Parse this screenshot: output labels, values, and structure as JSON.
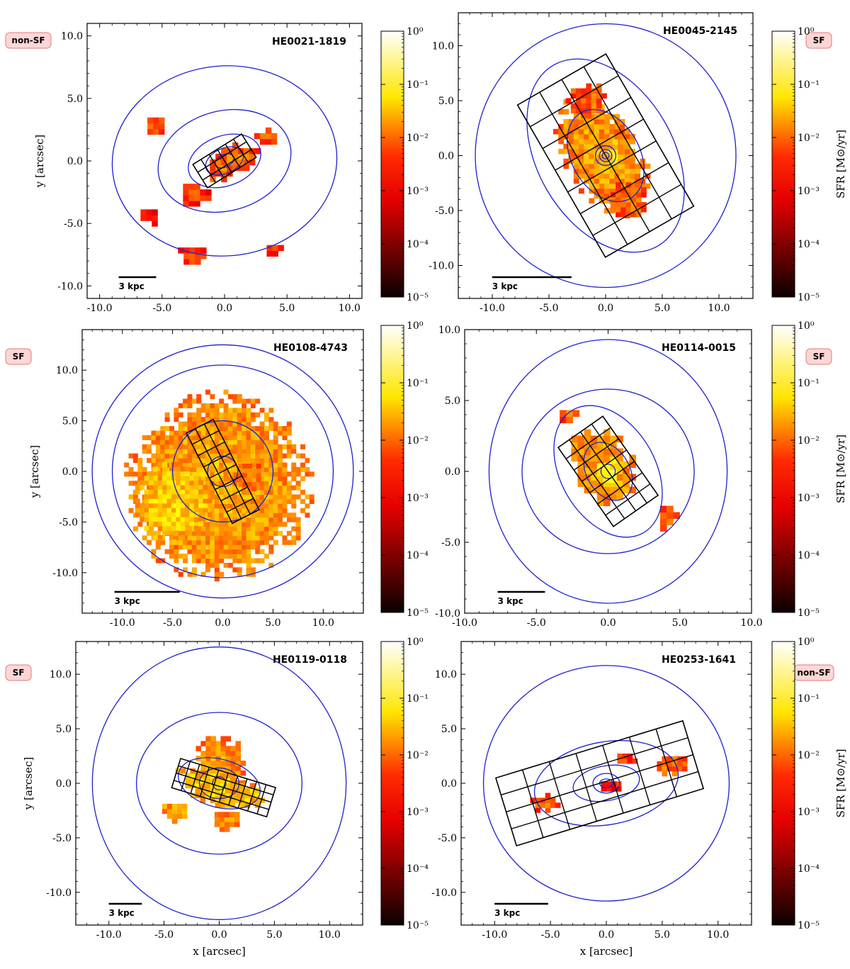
{
  "figure": {
    "type": "map",
    "colorbar": {
      "label": "SFR [M⊙/yr]",
      "ticks": [
        "10⁻⁵",
        "10⁻⁴",
        "10⁻³",
        "10⁻²",
        "10⁻¹",
        "10⁰"
      ],
      "colormap": "hot"
    },
    "contour_color": "#1f1fd0",
    "grid_color": "#000000"
  },
  "chart_data": [
    {
      "id": "HE0021-1819",
      "type": "heatmap",
      "title": "HE0021-1819",
      "badge": "non-SF",
      "xlabel": "",
      "ylabel": "y [arcsec]",
      "xlim": [
        -11,
        11
      ],
      "ylim": [
        -11,
        11
      ],
      "xticks": [
        "-10.0",
        "-5.0",
        "0.0",
        "5.0",
        "10.0"
      ],
      "yticks": [
        "-10.0",
        "-5.0",
        "0.0",
        "5.0",
        "10.0"
      ],
      "scalebar_label": "3 kpc",
      "scalebar_arcsec": 3.0,
      "grid": {
        "center": [
          0.0,
          0.0
        ],
        "width": 4.6,
        "height": 2.2,
        "angle_deg": 32,
        "cols": 6,
        "rows": 3
      },
      "contours": [
        [
          9.0,
          7.6,
          5
        ],
        [
          5.4,
          4.0,
          15
        ],
        [
          3.0,
          2.0,
          20
        ],
        [
          1.6,
          1.0,
          25
        ],
        [
          0.8,
          0.5,
          25
        ]
      ],
      "blobs": [
        {
          "x": 0.5,
          "y": 0.0,
          "rx": 2.5,
          "ry": 1.2,
          "angle": 30,
          "logsfr": -2.3
        },
        {
          "x": -5.5,
          "y": 2.8,
          "rx": 1.0,
          "ry": 0.8,
          "angle": 0,
          "logsfr": -2.6
        },
        {
          "x": -2.5,
          "y": -2.8,
          "rx": 1.4,
          "ry": 1.0,
          "angle": 0,
          "logsfr": -2.7
        },
        {
          "x": 3.5,
          "y": 2.0,
          "rx": 1.2,
          "ry": 0.6,
          "angle": 0,
          "logsfr": -2.6
        },
        {
          "x": -2.5,
          "y": -7.5,
          "rx": 1.2,
          "ry": 0.7,
          "angle": 0,
          "logsfr": -2.5
        },
        {
          "x": 4.0,
          "y": -7.0,
          "rx": 0.8,
          "ry": 0.5,
          "angle": 0,
          "logsfr": -2.7
        },
        {
          "x": -6.0,
          "y": -4.5,
          "rx": 0.8,
          "ry": 0.6,
          "angle": 0,
          "logsfr": -2.8
        }
      ]
    },
    {
      "id": "HE0045-2145",
      "type": "heatmap",
      "title": "HE0045-2145",
      "badge": "SF",
      "xlabel": "",
      "ylabel": "",
      "xlim": [
        -13,
        13
      ],
      "ylim": [
        -13,
        13
      ],
      "xticks": [
        "-10.0",
        "-5.0",
        "0.0",
        "5.0",
        "10.0"
      ],
      "yticks": [
        "-10.0",
        "-5.0",
        "0.0",
        "5.0",
        "10.0"
      ],
      "scalebar_label": "3 kpc",
      "scalebar_arcsec": 7.0,
      "grid": {
        "center": [
          0.0,
          0.0
        ],
        "width": 9.0,
        "height": 16.0,
        "angle_deg": 30,
        "cols": 4,
        "rows": 7
      },
      "contours": [
        [
          11.5,
          12.0,
          0
        ],
        [
          6.0,
          9.5,
          30
        ],
        [
          3.0,
          4.5,
          30
        ],
        [
          0.9,
          0.9,
          0
        ],
        [
          0.55,
          0.55,
          0
        ],
        [
          0.3,
          0.3,
          0
        ]
      ],
      "blobs": [
        {
          "x": -0.3,
          "y": 0.0,
          "rx": 3.5,
          "ry": 6.0,
          "angle": 30,
          "logsfr": -2.0
        },
        {
          "x": -1.5,
          "y": 5.0,
          "rx": 1.8,
          "ry": 1.8,
          "angle": 0,
          "logsfr": -2.4
        },
        {
          "x": 2.0,
          "y": -4.0,
          "rx": 1.8,
          "ry": 1.8,
          "angle": 0,
          "logsfr": -2.4
        },
        {
          "x": 0.5,
          "y": 0.0,
          "rx": 1.2,
          "ry": 1.6,
          "angle": 0,
          "logsfr": -1.6
        }
      ]
    },
    {
      "id": "HE0108-4743",
      "type": "heatmap",
      "title": "HE0108-4743",
      "badge": "SF",
      "xlabel": "",
      "ylabel": "y [arcsec]",
      "xlim": [
        -14,
        14
      ],
      "ylim": [
        -14,
        14
      ],
      "xticks": [
        "-10.0",
        "-5.0",
        "0.0",
        "5.0",
        "10.0"
      ],
      "yticks": [
        "-10.0",
        "-5.0",
        "0.0",
        "5.0",
        "10.0"
      ],
      "scalebar_label": "3 kpc",
      "scalebar_arcsec": 6.5,
      "grid": {
        "center": [
          0.0,
          0.0
        ],
        "width": 3.0,
        "height": 10.0,
        "angle_deg": 27,
        "cols": 3,
        "rows": 8
      },
      "contours": [
        [
          13.0,
          12.5,
          0
        ],
        [
          11.0,
          10.5,
          0
        ],
        [
          5.0,
          5.0,
          20
        ],
        [
          1.5,
          1.5,
          0
        ]
      ],
      "blobs": [
        {
          "x": -0.5,
          "y": -1.5,
          "rx": 9.5,
          "ry": 9.5,
          "angle": 0,
          "logsfr": -1.9
        },
        {
          "x": -5.0,
          "y": -3.0,
          "rx": 4.0,
          "ry": 4.0,
          "angle": 0,
          "logsfr": -1.6
        },
        {
          "x": 2.5,
          "y": -0.5,
          "rx": 1.5,
          "ry": 1.5,
          "angle": 0,
          "logsfr": -2.3
        }
      ]
    },
    {
      "id": "HE0114-0015",
      "type": "heatmap",
      "title": "HE0114-0015",
      "badge": "SF",
      "xlabel": "",
      "ylabel": "",
      "xlim": [
        -10,
        10
      ],
      "ylim": [
        -10,
        10
      ],
      "xticks": [
        "-10.0",
        "-5.0",
        "0.0",
        "5.0",
        "10.0"
      ],
      "yticks": [
        "-10.0",
        "-5.0",
        "0.0",
        "5.0",
        "10.0"
      ],
      "scalebar_label": "3 kpc",
      "scalebar_arcsec": 3.3,
      "grid": {
        "center": [
          0.0,
          0.0
        ],
        "width": 3.8,
        "height": 6.8,
        "angle_deg": 35,
        "cols": 4,
        "rows": 7
      },
      "contours": [
        [
          8.3,
          9.3,
          0
        ],
        [
          6.0,
          5.8,
          0
        ],
        [
          3.3,
          5.0,
          30
        ],
        [
          1.5,
          2.2,
          30
        ],
        [
          0.5,
          0.5,
          0
        ]
      ],
      "blobs": [
        {
          "x": -0.3,
          "y": 0.3,
          "rx": 2.2,
          "ry": 3.0,
          "angle": 30,
          "logsfr": -1.9
        },
        {
          "x": 0.0,
          "y": 0.0,
          "rx": 0.9,
          "ry": 1.0,
          "angle": 0,
          "logsfr": -1.2
        },
        {
          "x": -2.8,
          "y": 4.0,
          "rx": 1.0,
          "ry": 0.7,
          "angle": 0,
          "logsfr": -2.5
        },
        {
          "x": 4.2,
          "y": -3.2,
          "rx": 0.8,
          "ry": 0.9,
          "angle": 0,
          "logsfr": -2.4
        }
      ]
    },
    {
      "id": "HE0119-0118",
      "type": "heatmap",
      "title": "HE0119-0118",
      "badge": "SF",
      "xlabel": "x [arcsec]",
      "ylabel": "y [arcsec]",
      "xlim": [
        -13,
        13
      ],
      "ylim": [
        -13,
        13
      ],
      "xticks": [
        "-10.0",
        "-5.0",
        "0.0",
        "5.0",
        "10.0"
      ],
      "yticks": [
        "-10.0",
        "-5.0",
        "0.0",
        "5.0",
        "10.0"
      ],
      "scalebar_label": "3 kpc",
      "scalebar_arcsec": 3.0,
      "grid": {
        "center": [
          0.4,
          -0.4
        ],
        "width": 9.0,
        "height": 2.8,
        "angle_deg": -17,
        "cols": 10,
        "rows": 4
      },
      "contours": [
        [
          11.5,
          12.5,
          0
        ],
        [
          7.5,
          6.5,
          0
        ],
        [
          3.8,
          2.2,
          -15
        ],
        [
          1.8,
          1.4,
          0
        ],
        [
          0.6,
          0.6,
          0
        ]
      ],
      "blobs": [
        {
          "x": 0.0,
          "y": 1.5,
          "rx": 2.5,
          "ry": 3.0,
          "angle": 0,
          "logsfr": -2.0
        },
        {
          "x": 0.0,
          "y": -0.5,
          "rx": 4.5,
          "ry": 1.5,
          "angle": -17,
          "logsfr": -1.6
        },
        {
          "x": -4.0,
          "y": -2.5,
          "rx": 1.3,
          "ry": 1.0,
          "angle": 0,
          "logsfr": -1.9
        },
        {
          "x": 0.5,
          "y": -3.5,
          "rx": 1.5,
          "ry": 1.0,
          "angle": 0,
          "logsfr": -2.1
        }
      ]
    },
    {
      "id": "HE0253-1641",
      "type": "heatmap",
      "title": "HE0253-1641",
      "badge": "non-SF",
      "xlabel": "x [arcsec]",
      "ylabel": "",
      "xlim": [
        -13,
        13
      ],
      "ylim": [
        -13,
        13
      ],
      "xticks": [
        "-10.0",
        "-5.0",
        "0.0",
        "5.0",
        "10.0"
      ],
      "yticks": [
        "-10.0",
        "-5.0",
        "0.0",
        "5.0",
        "10.0"
      ],
      "scalebar_label": "3 kpc",
      "scalebar_arcsec": 4.8,
      "grid": {
        "center": [
          -0.6,
          0.0
        ],
        "width": 17.5,
        "height": 6.5,
        "angle_deg": 17,
        "cols": 7,
        "rows": 4
      },
      "contours": [
        [
          11.0,
          10.8,
          0
        ],
        [
          6.5,
          3.8,
          10
        ],
        [
          3.0,
          1.6,
          10
        ],
        [
          1.2,
          0.9,
          0
        ],
        [
          0.6,
          0.4,
          0
        ]
      ],
      "blobs": [
        {
          "x": 6.0,
          "y": 1.7,
          "rx": 1.6,
          "ry": 1.0,
          "angle": 0,
          "logsfr": -2.3
        },
        {
          "x": 1.8,
          "y": 2.2,
          "rx": 1.0,
          "ry": 0.5,
          "angle": 0,
          "logsfr": -2.6
        },
        {
          "x": -5.5,
          "y": -1.8,
          "rx": 1.2,
          "ry": 0.8,
          "angle": 0,
          "logsfr": -2.4
        },
        {
          "x": 0.5,
          "y": -0.2,
          "rx": 1.5,
          "ry": 0.6,
          "angle": 0,
          "logsfr": -2.9
        }
      ]
    }
  ]
}
